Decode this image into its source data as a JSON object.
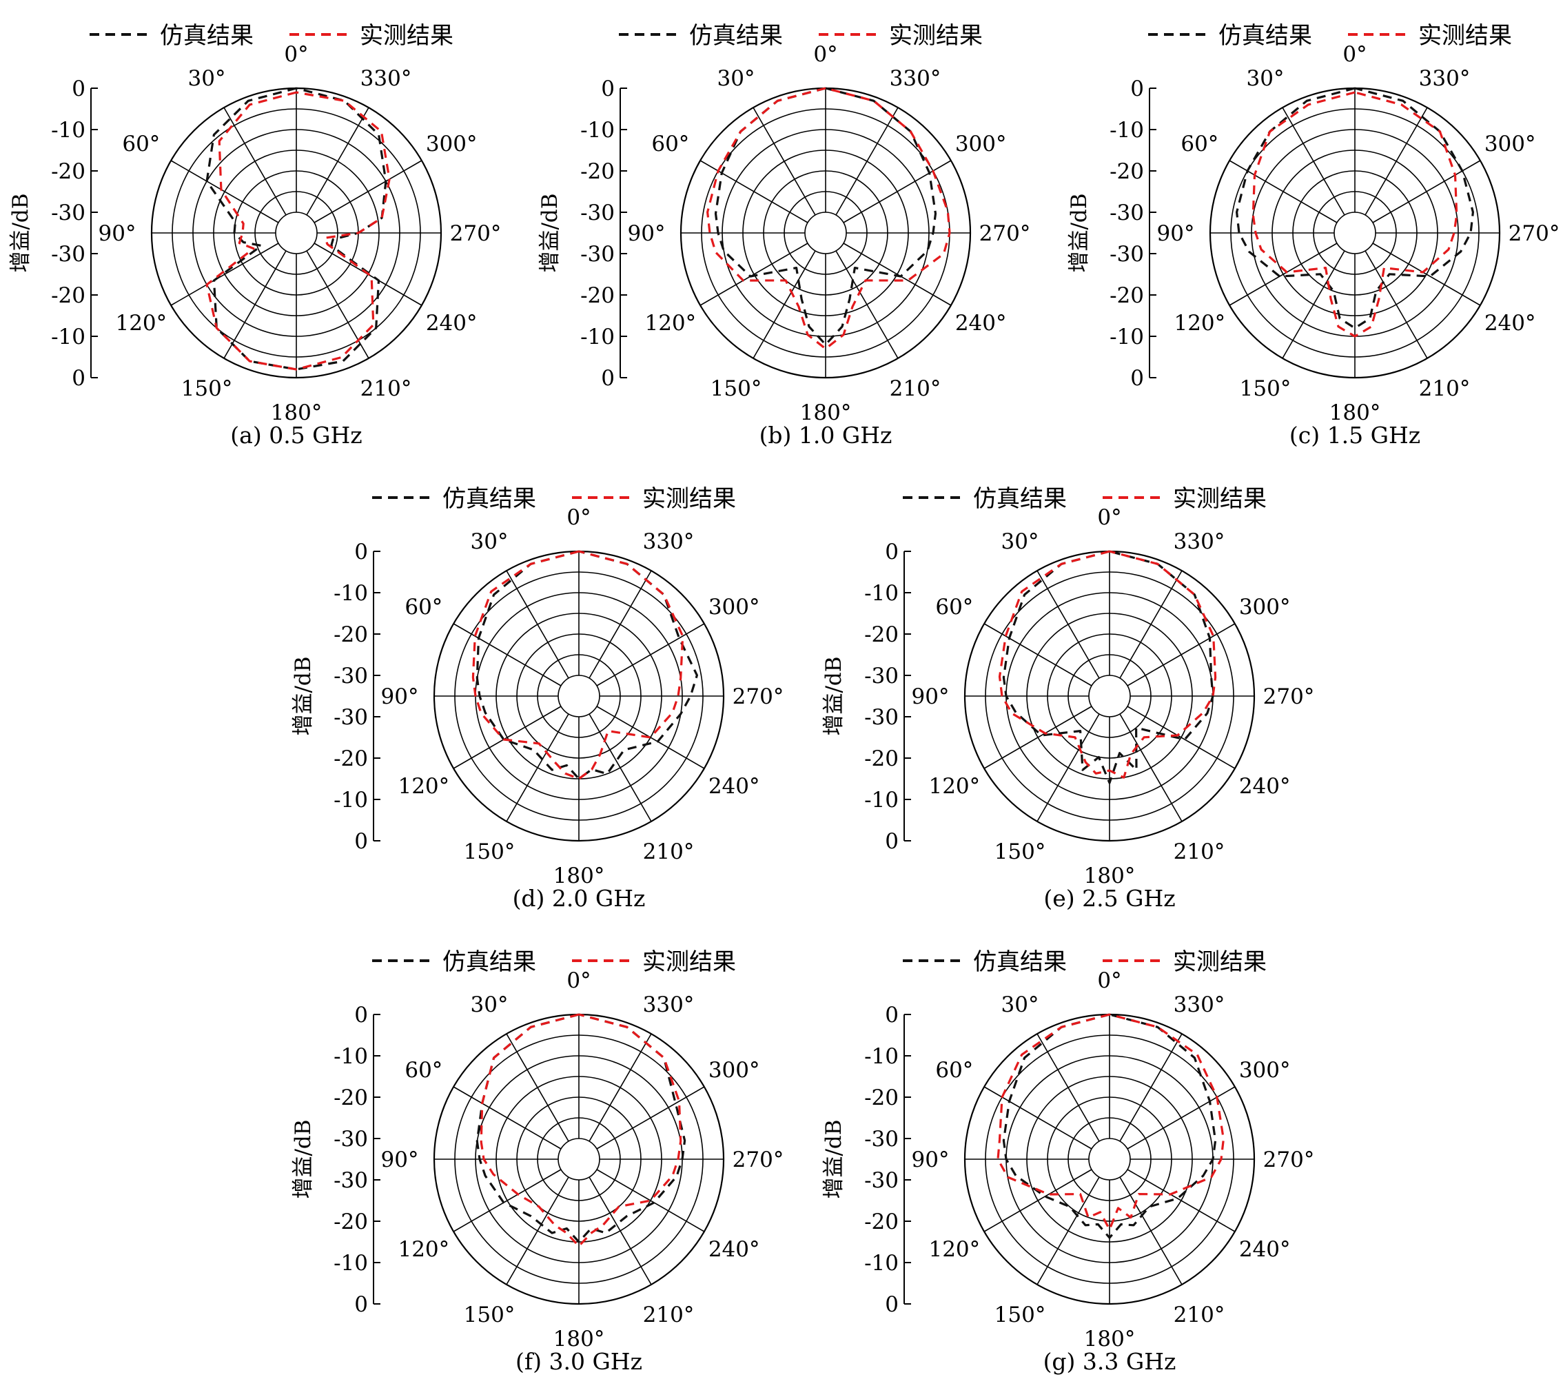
{
  "legend": {
    "sim_label": "仿真结果",
    "meas_label": "实测结果"
  },
  "colors": {
    "sim": "#111111",
    "meas": "#e41a1c",
    "grid": "#000000"
  },
  "chart_data": [
    {
      "type": "polar",
      "caption": "(a) 0.5 GHz",
      "ylabel": "增益/dB",
      "rlim": [
        -35,
        0
      ],
      "r_ticks": [
        "0",
        "-10",
        "-20",
        "-30",
        "-30",
        "-20",
        "-10",
        "0"
      ],
      "theta_labels": [
        "0°",
        "30°",
        "60°",
        "90°",
        "120°",
        "150°",
        "180°",
        "210°",
        "240°",
        "270°",
        "300°",
        "330°"
      ],
      "grid": true,
      "series": [
        {
          "name": "仿真结果",
          "theta": [
            0,
            20,
            40,
            60,
            80,
            90,
            100,
            110,
            120,
            140,
            160,
            180,
            200,
            220,
            240,
            250,
            260,
            270,
            280,
            300,
            320,
            340,
            360
          ],
          "values": [
            0,
            -1,
            -4,
            -10,
            -20,
            -20,
            -22,
            -26,
            -12,
            -5,
            -2,
            -2,
            -2,
            -5,
            -12,
            -26,
            -26,
            -20,
            -14,
            -10,
            -4,
            -1,
            0
          ]
        },
        {
          "name": "实测结果",
          "theta": [
            0,
            20,
            40,
            60,
            80,
            90,
            100,
            110,
            120,
            140,
            160,
            180,
            200,
            220,
            240,
            250,
            260,
            270,
            280,
            300,
            320,
            340,
            360
          ],
          "values": [
            -1,
            -2,
            -6,
            -14,
            -22,
            -22,
            -21,
            -24,
            -10,
            -5,
            -2,
            -2,
            -3,
            -6,
            -14,
            -27,
            -28,
            -20,
            -14,
            -9,
            -3,
            -1,
            -1
          ]
        }
      ]
    },
    {
      "type": "polar",
      "caption": "(b) 1.0 GHz",
      "ylabel": "增益/dB",
      "rlim": [
        -35,
        0
      ],
      "r_ticks": [
        "0",
        "-10",
        "-20",
        "-30",
        "-30",
        "-20",
        "-10",
        "0"
      ],
      "theta_labels": [
        "0°",
        "30°",
        "60°",
        "90°",
        "120°",
        "150°",
        "180°",
        "210°",
        "240°",
        "270°",
        "300°",
        "330°"
      ],
      "grid": true,
      "series": [
        {
          "name": "仿真结果",
          "theta": [
            0,
            20,
            40,
            60,
            80,
            90,
            100,
            120,
            140,
            160,
            170,
            180,
            190,
            200,
            220,
            240,
            260,
            270,
            280,
            300,
            320,
            340,
            360
          ],
          "values": [
            0,
            -1,
            -3,
            -6,
            -8,
            -9,
            -10,
            -14,
            -24,
            -18,
            -12,
            -8,
            -12,
            -18,
            -24,
            -14,
            -10,
            -9,
            -8,
            -6,
            -3,
            -1,
            0
          ]
        },
        {
          "name": "实测结果",
          "theta": [
            0,
            20,
            40,
            60,
            80,
            90,
            100,
            120,
            140,
            160,
            170,
            180,
            190,
            200,
            220,
            240,
            260,
            270,
            280,
            300,
            320,
            340,
            360
          ],
          "values": [
            0,
            -1,
            -3,
            -5,
            -6,
            -7,
            -8,
            -12,
            -20,
            -16,
            -10,
            -7,
            -10,
            -16,
            -20,
            -12,
            -6,
            -5,
            -5,
            -5,
            -3,
            -1,
            0
          ]
        }
      ]
    },
    {
      "type": "polar",
      "caption": "(c) 1.5 GHz",
      "ylabel": "增益/dB",
      "rlim": [
        -35,
        0
      ],
      "r_ticks": [
        "0",
        "-10",
        "-20",
        "-30",
        "-30",
        "-20",
        "-10",
        "0"
      ],
      "theta_labels": [
        "0°",
        "30°",
        "60°",
        "90°",
        "120°",
        "150°",
        "180°",
        "210°",
        "240°",
        "270°",
        "300°",
        "330°"
      ],
      "grid": true,
      "series": [
        {
          "name": "仿真结果",
          "theta": [
            0,
            20,
            40,
            60,
            80,
            90,
            100,
            120,
            140,
            160,
            170,
            180,
            190,
            200,
            220,
            240,
            260,
            270,
            280,
            300,
            320,
            340,
            360
          ],
          "values": [
            0,
            -1,
            -3,
            -5,
            -6,
            -7,
            -9,
            -14,
            -22,
            -20,
            -14,
            -12,
            -14,
            -20,
            -22,
            -14,
            -9,
            -7,
            -6,
            -5,
            -3,
            -1,
            0
          ]
        },
        {
          "name": "实测结果",
          "theta": [
            0,
            20,
            40,
            60,
            80,
            90,
            100,
            120,
            140,
            160,
            170,
            180,
            190,
            200,
            220,
            240,
            260,
            270,
            280,
            300,
            320,
            340,
            360
          ],
          "values": [
            -1,
            -2,
            -3,
            -7,
            -10,
            -11,
            -12,
            -16,
            -24,
            -18,
            -12,
            -10,
            -12,
            -18,
            -24,
            -16,
            -12,
            -11,
            -10,
            -7,
            -3,
            -2,
            -1
          ]
        }
      ]
    },
    {
      "type": "polar",
      "caption": "(d) 2.0 GHz",
      "ylabel": "增益/dB",
      "rlim": [
        -35,
        0
      ],
      "r_ticks": [
        "0",
        "-10",
        "-20",
        "-30",
        "-30",
        "-20",
        "-10",
        "0"
      ],
      "theta_labels": [
        "0°",
        "30°",
        "60°",
        "90°",
        "120°",
        "150°",
        "180°",
        "210°",
        "240°",
        "270°",
        "300°",
        "330°"
      ],
      "grid": true,
      "series": [
        {
          "name": "仿真结果",
          "theta": [
            0,
            20,
            40,
            60,
            80,
            90,
            100,
            120,
            140,
            160,
            170,
            180,
            190,
            200,
            220,
            240,
            260,
            270,
            280,
            300,
            320,
            340,
            360
          ],
          "values": [
            0,
            -1,
            -3,
            -7,
            -10,
            -11,
            -12,
            -14,
            -18,
            -16,
            -18,
            -15,
            -17,
            -15,
            -18,
            -13,
            -10,
            -8,
            -6,
            -7,
            -3,
            -1,
            0
          ]
        },
        {
          "name": "实测结果",
          "theta": [
            0,
            20,
            40,
            60,
            80,
            90,
            100,
            120,
            140,
            160,
            170,
            180,
            190,
            200,
            220,
            240,
            260,
            270,
            280,
            300,
            320,
            340,
            360
          ],
          "values": [
            0,
            -1,
            -2,
            -6,
            -9,
            -10,
            -11,
            -14,
            -20,
            -18,
            -16,
            -15,
            -17,
            -20,
            -24,
            -15,
            -12,
            -11,
            -10,
            -6,
            -3,
            -1,
            0
          ]
        }
      ]
    },
    {
      "type": "polar",
      "caption": "(e) 2.5 GHz",
      "ylabel": "增益/dB",
      "rlim": [
        -35,
        0
      ],
      "r_ticks": [
        "0",
        "-10",
        "-20",
        "-30",
        "-30",
        "-20",
        "-10",
        "0"
      ],
      "theta_labels": [
        "0°",
        "30°",
        "60°",
        "90°",
        "120°",
        "150°",
        "180°",
        "210°",
        "240°",
        "270°",
        "300°",
        "330°"
      ],
      "grid": true,
      "series": [
        {
          "name": "仿真结果",
          "theta": [
            0,
            20,
            40,
            60,
            80,
            90,
            100,
            120,
            140,
            160,
            170,
            180,
            190,
            200,
            220,
            240,
            260,
            270,
            280,
            300,
            320,
            340,
            360
          ],
          "values": [
            0,
            -1,
            -3,
            -7,
            -9,
            -10,
            -12,
            -16,
            -24,
            -16,
            -20,
            -14,
            -21,
            -16,
            -25,
            -14,
            -11,
            -10,
            -10,
            -7,
            -3,
            -1,
            0
          ]
        },
        {
          "name": "实测结果",
          "theta": [
            0,
            20,
            40,
            60,
            80,
            90,
            100,
            120,
            140,
            160,
            170,
            180,
            190,
            200,
            220,
            240,
            260,
            270,
            280,
            300,
            320,
            340,
            360
          ],
          "values": [
            0,
            -1,
            -2,
            -6,
            -8,
            -9,
            -11,
            -17,
            -22,
            -18,
            -16,
            -17,
            -15,
            -20,
            -22,
            -16,
            -12,
            -10,
            -9,
            -6,
            -3,
            -1,
            0
          ]
        }
      ]
    },
    {
      "type": "polar",
      "caption": "(f) 3.0 GHz",
      "ylabel": "增益/dB",
      "rlim": [
        -35,
        0
      ],
      "r_ticks": [
        "0",
        "-10",
        "-20",
        "-30",
        "-30",
        "-20",
        "-10",
        "0"
      ],
      "theta_labels": [
        "0°",
        "30°",
        "60°",
        "90°",
        "120°",
        "150°",
        "180°",
        "210°",
        "240°",
        "270°",
        "300°",
        "330°"
      ],
      "grid": true,
      "series": [
        {
          "name": "仿真结果",
          "theta": [
            0,
            20,
            40,
            60,
            80,
            90,
            100,
            120,
            140,
            160,
            170,
            180,
            190,
            200,
            220,
            240,
            260,
            270,
            280,
            300,
            320,
            340,
            360
          ],
          "values": [
            0,
            -1,
            -3,
            -8,
            -10,
            -11,
            -12,
            -14,
            -17,
            -16,
            -18,
            -15,
            -18,
            -16,
            -17,
            -14,
            -11,
            -10,
            -9,
            -8,
            -3,
            -1,
            0
          ]
        },
        {
          "name": "实测结果",
          "theta": [
            0,
            20,
            40,
            60,
            80,
            90,
            100,
            120,
            140,
            160,
            170,
            180,
            190,
            200,
            220,
            240,
            260,
            270,
            280,
            300,
            320,
            340,
            360
          ],
          "values": [
            0,
            -1,
            -3,
            -8,
            -11,
            -12,
            -14,
            -18,
            -20,
            -18,
            -17,
            -14,
            -17,
            -18,
            -20,
            -15,
            -12,
            -11,
            -10,
            -7,
            -3,
            -1,
            0
          ]
        }
      ]
    },
    {
      "type": "polar",
      "caption": "(g) 3.3 GHz",
      "ylabel": "增益/dB",
      "rlim": [
        -35,
        0
      ],
      "r_ticks": [
        "0",
        "-10",
        "-20",
        "-30",
        "-30",
        "-20",
        "-10",
        "0"
      ],
      "theta_labels": [
        "0°",
        "30°",
        "60°",
        "90°",
        "120°",
        "150°",
        "180°",
        "210°",
        "240°",
        "270°",
        "300°",
        "330°"
      ],
      "grid": true,
      "series": [
        {
          "name": "仿真结果",
          "theta": [
            0,
            20,
            40,
            60,
            80,
            90,
            100,
            120,
            140,
            160,
            170,
            180,
            190,
            200,
            220,
            240,
            260,
            270,
            280,
            300,
            320,
            340,
            360
          ],
          "values": [
            0,
            -1,
            -3,
            -7,
            -9,
            -10,
            -12,
            -17,
            -20,
            -18,
            -19,
            -16,
            -19,
            -18,
            -20,
            -16,
            -12,
            -10,
            -9,
            -7,
            -3,
            -1,
            0
          ]
        },
        {
          "name": "实测结果",
          "theta": [
            0,
            20,
            40,
            60,
            80,
            90,
            100,
            120,
            140,
            160,
            170,
            180,
            190,
            200,
            220,
            240,
            260,
            270,
            280,
            300,
            320,
            340,
            360
          ],
          "values": [
            0,
            -1,
            -2,
            -5,
            -8,
            -8,
            -10,
            -18,
            -24,
            -20,
            -22,
            -18,
            -23,
            -20,
            -24,
            -18,
            -10,
            -8,
            -7,
            -5,
            -2,
            -1,
            0
          ]
        }
      ]
    }
  ]
}
